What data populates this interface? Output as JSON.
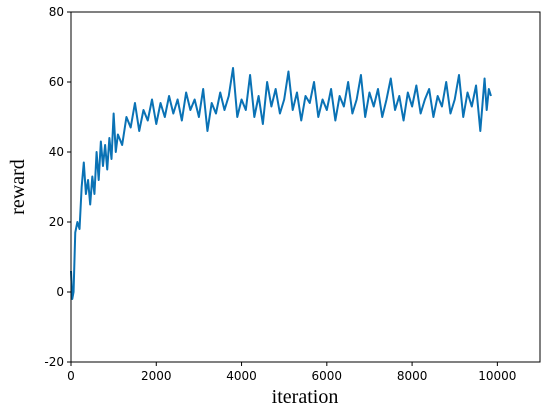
{
  "chart_data": {
    "type": "line",
    "x_label": "iteration",
    "y_label": "reward",
    "xlim": [
      0,
      11000
    ],
    "ylim": [
      -20,
      80
    ],
    "xticks": [
      0,
      2000,
      4000,
      6000,
      8000,
      10000
    ],
    "yticks": [
      -20,
      0,
      20,
      40,
      60,
      80
    ],
    "series": [
      {
        "color": "#0a72b5",
        "x": [
          0,
          30,
          60,
          100,
          150,
          200,
          250,
          300,
          350,
          400,
          450,
          500,
          550,
          600,
          650,
          700,
          750,
          800,
          850,
          900,
          950,
          1000,
          1050,
          1100,
          1200,
          1300,
          1400,
          1500,
          1600,
          1700,
          1800,
          1900,
          2000,
          2100,
          2200,
          2300,
          2400,
          2500,
          2600,
          2700,
          2800,
          2900,
          3000,
          3100,
          3200,
          3300,
          3400,
          3500,
          3600,
          3700,
          3800,
          3900,
          4000,
          4100,
          4200,
          4300,
          4400,
          4500,
          4600,
          4700,
          4800,
          4900,
          5000,
          5100,
          5200,
          5300,
          5400,
          5500,
          5600,
          5700,
          5800,
          5900,
          6000,
          6100,
          6200,
          6300,
          6400,
          6500,
          6600,
          6700,
          6800,
          6900,
          7000,
          7100,
          7200,
          7300,
          7400,
          7500,
          7600,
          7700,
          7800,
          7900,
          8000,
          8100,
          8200,
          8300,
          8400,
          8500,
          8600,
          8700,
          8800,
          8900,
          9000,
          9100,
          9200,
          9300,
          9400,
          9500,
          9600,
          9700,
          9750,
          9800,
          9850
        ],
        "values": [
          6,
          -2,
          0,
          17,
          20,
          18,
          30,
          37,
          28,
          32,
          25,
          33,
          28,
          40,
          32,
          43,
          36,
          42,
          35,
          44,
          38,
          51,
          40,
          45,
          42,
          50,
          47,
          54,
          46,
          52,
          49,
          55,
          48,
          54,
          50,
          56,
          51,
          55,
          49,
          57,
          52,
          55,
          50,
          58,
          46,
          54,
          51,
          57,
          52,
          56,
          64,
          50,
          55,
          52,
          62,
          50,
          56,
          48,
          60,
          53,
          58,
          51,
          55,
          63,
          52,
          57,
          49,
          56,
          54,
          60,
          50,
          55,
          52,
          58,
          49,
          56,
          53,
          60,
          51,
          55,
          62,
          50,
          57,
          53,
          58,
          50,
          55,
          61,
          52,
          56,
          49,
          57,
          53,
          59,
          51,
          55,
          58,
          50,
          56,
          53,
          60,
          51,
          55,
          62,
          50,
          57,
          53,
          59,
          46,
          61,
          52,
          58,
          56
        ]
      }
    ]
  }
}
